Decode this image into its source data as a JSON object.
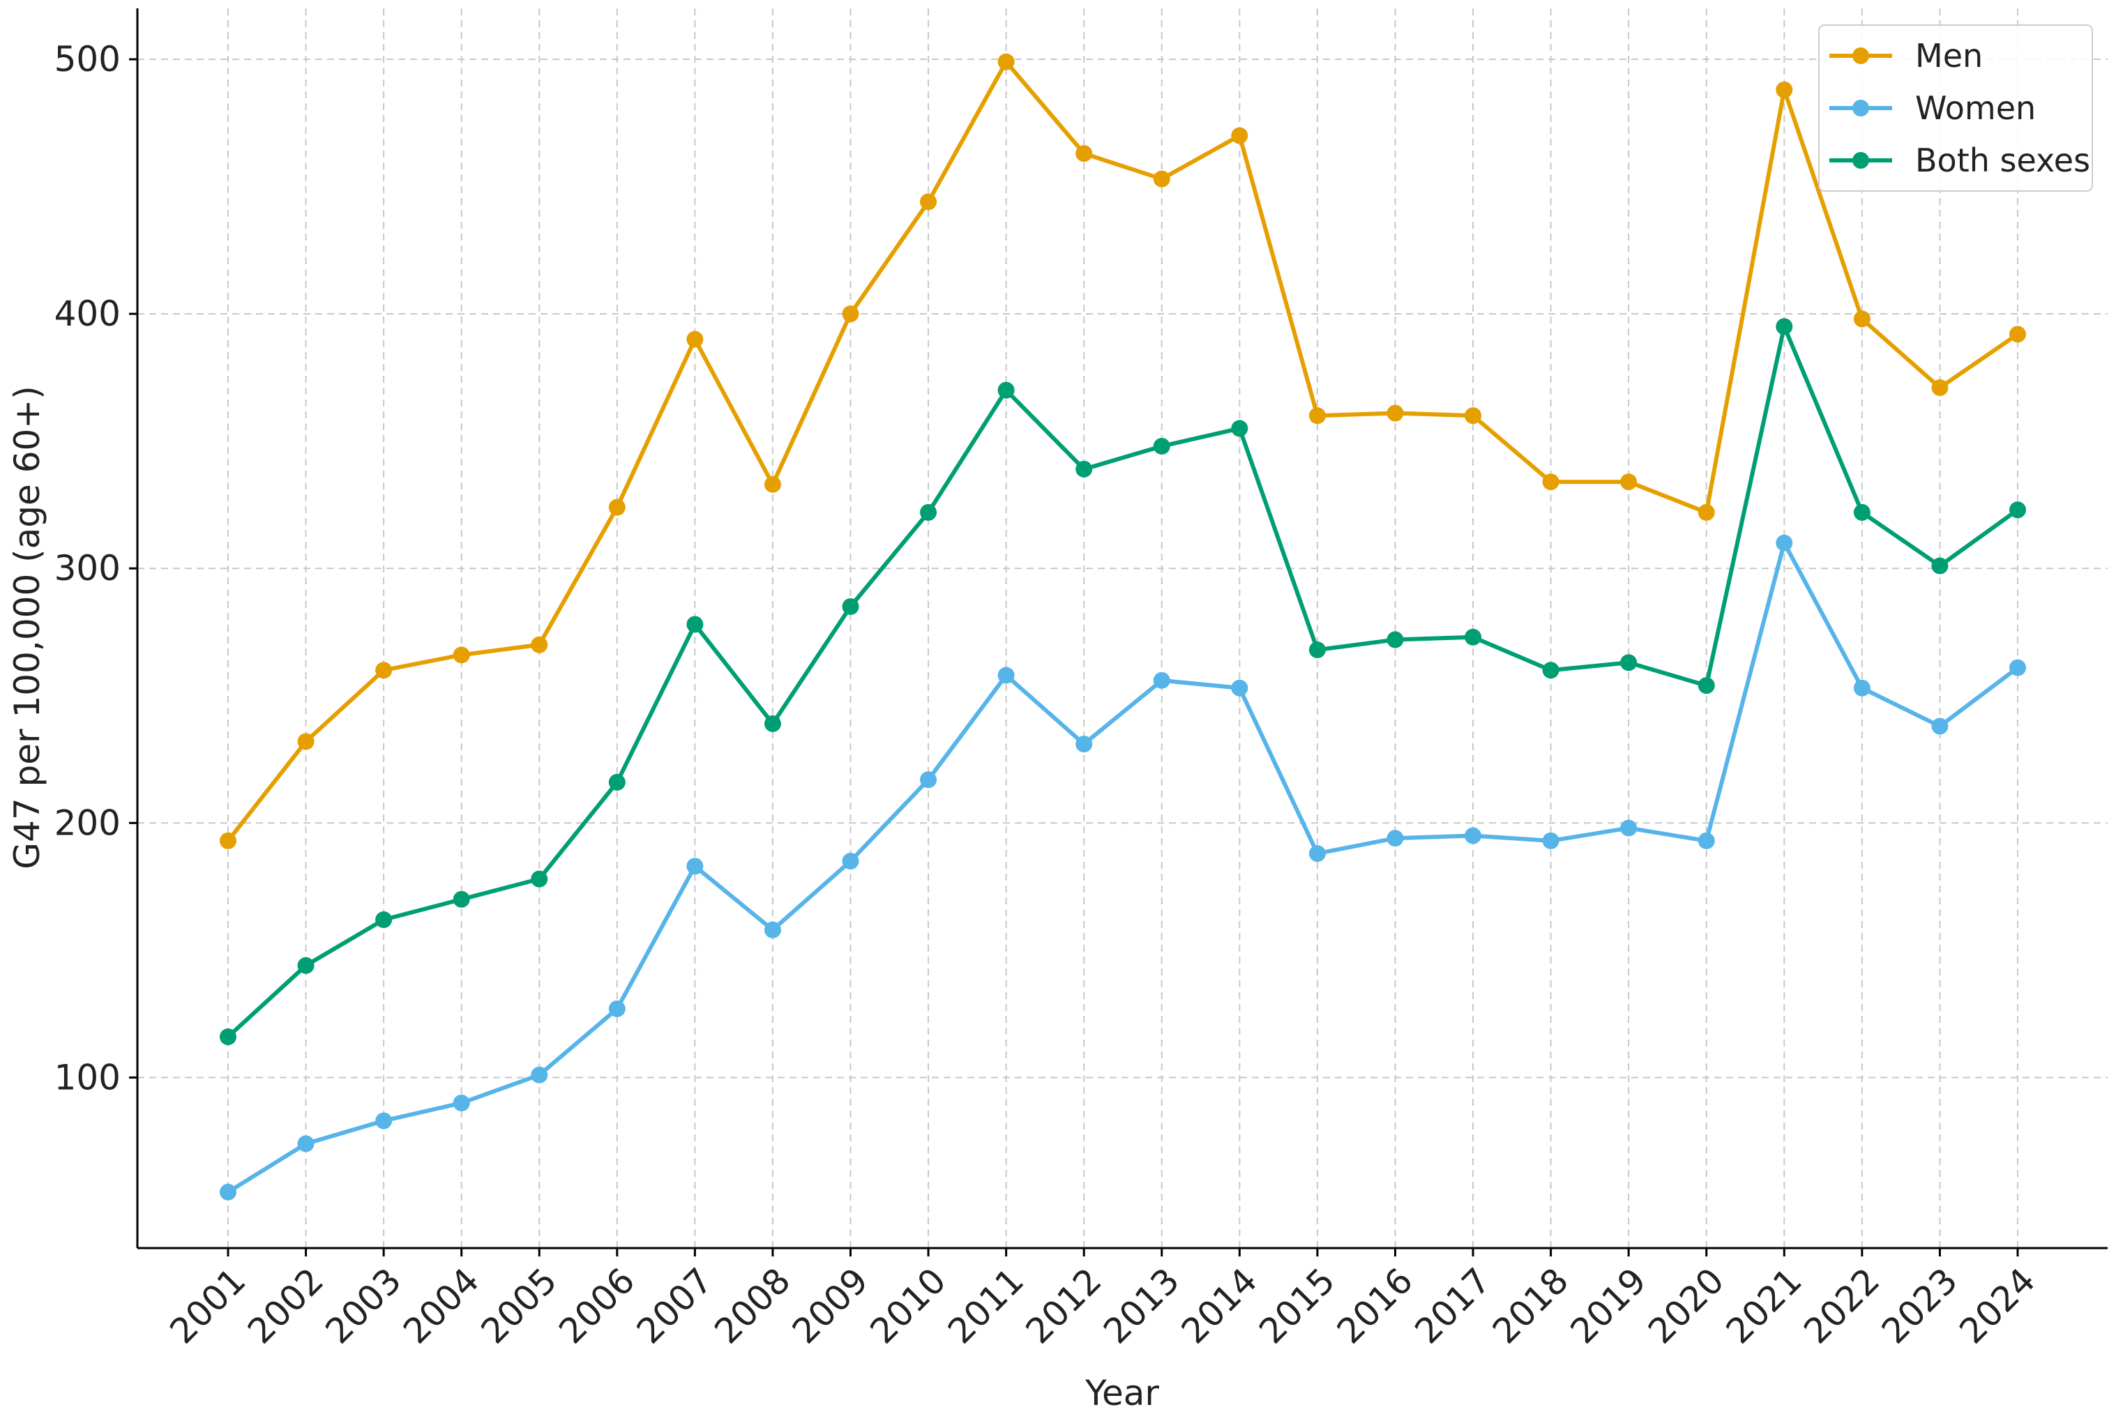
{
  "chart_data": {
    "type": "line",
    "xlabel": "Year",
    "ylabel": "G47 per 100,000 (age 60+)",
    "categories": [
      "2001",
      "2002",
      "2003",
      "2004",
      "2005",
      "2006",
      "2007",
      "2008",
      "2009",
      "2010",
      "2011",
      "2012",
      "2013",
      "2014",
      "2015",
      "2016",
      "2017",
      "2018",
      "2019",
      "2020",
      "2021",
      "2022",
      "2023",
      "2024"
    ],
    "yticks": [
      100,
      200,
      300,
      400,
      500
    ],
    "ylim": [
      33,
      520
    ],
    "grid": true,
    "legend_position": "top-right",
    "series": [
      {
        "name": "Men",
        "color": "#E69F00",
        "values": [
          193,
          232,
          260,
          266,
          270,
          324,
          390,
          333,
          400,
          444,
          499,
          463,
          453,
          470,
          360,
          361,
          360,
          334,
          334,
          322,
          488,
          398,
          371,
          392
        ]
      },
      {
        "name": "Women",
        "color": "#56B4E9",
        "values": [
          55,
          74,
          83,
          90,
          101,
          127,
          183,
          158,
          185,
          217,
          258,
          231,
          256,
          253,
          188,
          194,
          195,
          193,
          198,
          193,
          310,
          253,
          238,
          261
        ]
      },
      {
        "name": "Both sexes",
        "color": "#009E73",
        "values": [
          116,
          144,
          162,
          170,
          178,
          216,
          278,
          239,
          285,
          322,
          370,
          339,
          348,
          355,
          268,
          272,
          273,
          260,
          263,
          254,
          395,
          322,
          301,
          323
        ]
      }
    ]
  }
}
